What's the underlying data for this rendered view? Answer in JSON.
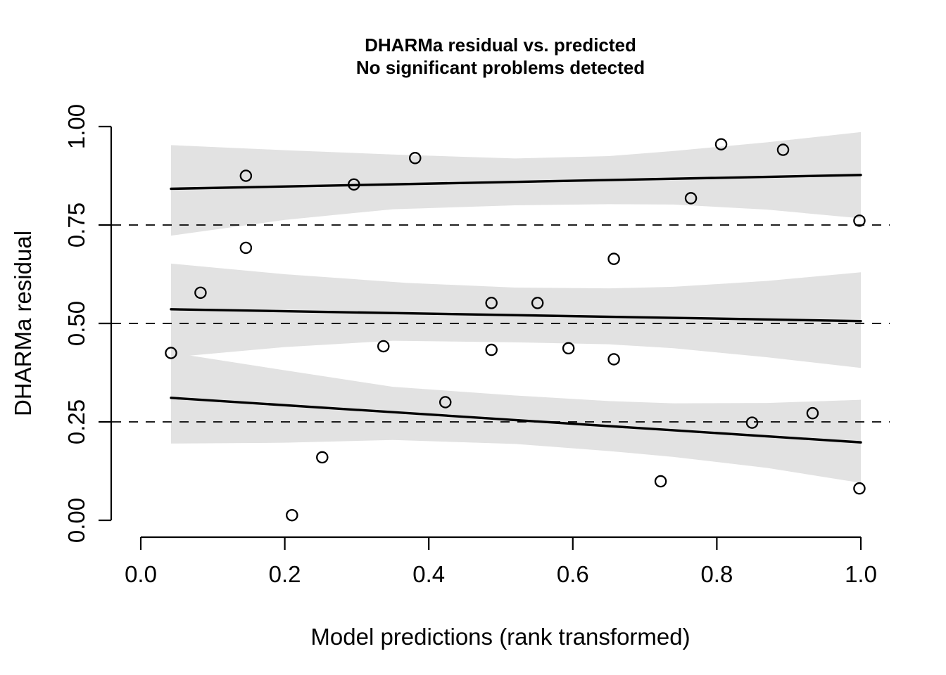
{
  "chart_data": {
    "type": "scatter",
    "title": "DHARMa residual vs. predicted",
    "subtitle": "No significant problems detected",
    "xlabel": "Model predictions (rank transformed)",
    "ylabel": "DHARMa residual",
    "xlim": [
      0,
      1
    ],
    "ylim": [
      0,
      1
    ],
    "grid": false,
    "legend": "none",
    "x_ticks": [
      "0.0",
      "0.2",
      "0.4",
      "0.6",
      "0.8",
      "1.0"
    ],
    "y_ticks": [
      "0.00",
      "0.25",
      "0.50",
      "0.75",
      "1.00"
    ],
    "points": [
      [
        0.042,
        0.425
      ],
      [
        0.083,
        0.578
      ],
      [
        0.146,
        0.875
      ],
      [
        0.146,
        0.692
      ],
      [
        0.21,
        0.013
      ],
      [
        0.252,
        0.16
      ],
      [
        0.296,
        0.853
      ],
      [
        0.337,
        0.442
      ],
      [
        0.381,
        0.92
      ],
      [
        0.423,
        0.3
      ],
      [
        0.487,
        0.552
      ],
      [
        0.487,
        0.433
      ],
      [
        0.551,
        0.552
      ],
      [
        0.594,
        0.437
      ],
      [
        0.657,
        0.664
      ],
      [
        0.657,
        0.409
      ],
      [
        0.722,
        0.099
      ],
      [
        0.764,
        0.818
      ],
      [
        0.806,
        0.955
      ],
      [
        0.849,
        0.248
      ],
      [
        0.892,
        0.941
      ],
      [
        0.933,
        0.272
      ],
      [
        0.998,
        0.761
      ],
      [
        0.998,
        0.081
      ]
    ],
    "reference_lines": [
      0.25,
      0.5,
      0.75
    ],
    "quantile_regression_lines": [
      {
        "quantile": "0.75",
        "x": [
          0.042,
          1.0
        ],
        "y": [
          0.842,
          0.877
        ]
      },
      {
        "quantile": "0.50",
        "x": [
          0.042,
          1.0
        ],
        "y": [
          0.536,
          0.506
        ]
      },
      {
        "quantile": "0.25",
        "x": [
          0.042,
          1.0
        ],
        "y": [
          0.311,
          0.198
        ]
      }
    ],
    "confidence_bands": [
      {
        "quantile": "0.75",
        "top": [
          [
            0.042,
            0.953
          ],
          [
            0.2,
            0.94
          ],
          [
            0.35,
            0.929
          ],
          [
            0.52,
            0.919
          ],
          [
            0.65,
            0.925
          ],
          [
            0.74,
            0.938
          ],
          [
            0.87,
            0.96
          ],
          [
            1.0,
            0.986
          ]
        ],
        "bottom": [
          [
            0.042,
            0.723
          ],
          [
            0.2,
            0.763
          ],
          [
            0.35,
            0.79
          ],
          [
            0.52,
            0.8
          ],
          [
            0.65,
            0.803
          ],
          [
            0.74,
            0.802
          ],
          [
            0.87,
            0.789
          ],
          [
            1.0,
            0.767
          ]
        ]
      },
      {
        "quantile": "0.50",
        "top": [
          [
            0.042,
            0.652
          ],
          [
            0.2,
            0.625
          ],
          [
            0.37,
            0.603
          ],
          [
            0.52,
            0.591
          ],
          [
            0.65,
            0.589
          ],
          [
            0.74,
            0.593
          ],
          [
            0.87,
            0.608
          ],
          [
            1.0,
            0.63
          ]
        ],
        "bottom": [
          [
            0.042,
            0.42
          ],
          [
            0.06,
            0.417
          ],
          [
            0.2,
            0.44
          ],
          [
            0.35,
            0.456
          ],
          [
            0.52,
            0.452
          ],
          [
            0.65,
            0.447
          ],
          [
            0.74,
            0.437
          ],
          [
            0.87,
            0.414
          ],
          [
            1.0,
            0.387
          ]
        ]
      },
      {
        "quantile": "0.25",
        "top": [
          [
            0.042,
            0.426
          ],
          [
            0.2,
            0.381
          ],
          [
            0.35,
            0.339
          ],
          [
            0.52,
            0.317
          ],
          [
            0.65,
            0.303
          ],
          [
            0.74,
            0.297
          ],
          [
            0.87,
            0.298
          ],
          [
            1.0,
            0.306
          ]
        ],
        "bottom": [
          [
            0.042,
            0.195
          ],
          [
            0.2,
            0.197
          ],
          [
            0.35,
            0.204
          ],
          [
            0.52,
            0.194
          ],
          [
            0.65,
            0.176
          ],
          [
            0.74,
            0.161
          ],
          [
            0.87,
            0.133
          ],
          [
            1.0,
            0.095
          ]
        ]
      }
    ],
    "colors": {
      "band": "#e2e2e2",
      "line": "#000000",
      "point_stroke": "#000000",
      "background": "#ffffff"
    }
  }
}
